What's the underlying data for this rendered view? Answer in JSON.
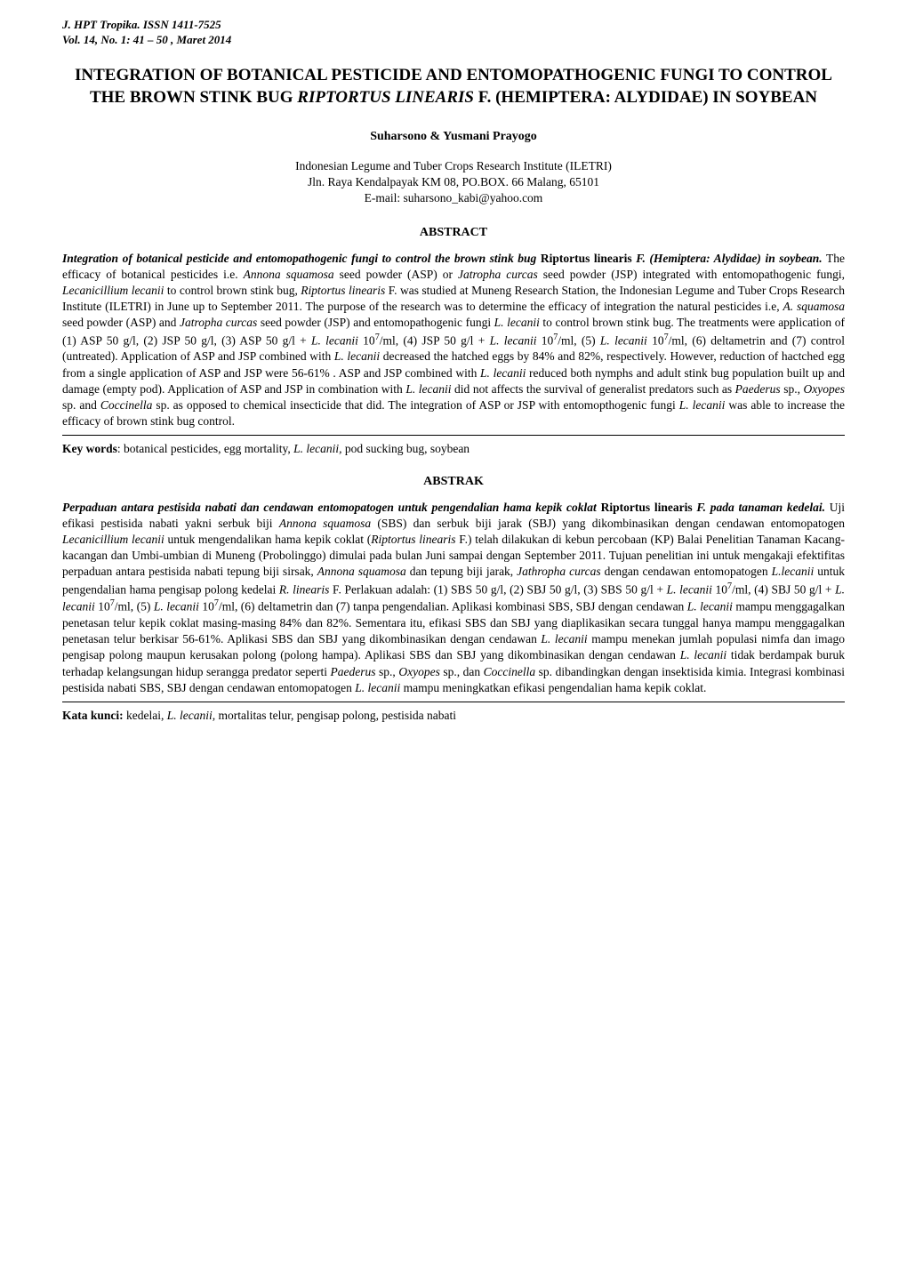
{
  "journal": {
    "name": "J. HPT Tropika.  ISSN 1411-7525",
    "vol": "Vol. 14,  No. 1: 41 – 50 ,  Maret 2014"
  },
  "title_pre": "INTEGRATION OF BOTANICAL PESTICIDE AND ENTOMOPATHOGENIC FUNGI TO CONTROL THE BROWN STINK BUG ",
  "title_sci": "RIPTORTUS LINEARIS",
  "title_post": " F. (HEMIPTERA: ALYDIDAE) IN SOYBEAN",
  "authors": "Suharsono & Yusmani Prayogo",
  "affiliation": {
    "l1": "Indonesian Legume and Tuber Crops Research Institute (ILETRI)",
    "l2": "Jln. Raya Kendalpayak KM 08, PO.BOX. 66 Malang, 65101",
    "l3": "E-mail: suharsono_kabi@yahoo.com"
  },
  "section_abstract": "ABSTRACT",
  "section_abstrak": "ABSTRAK",
  "keywords_label": "Key words",
  "keywords_pre": ": botanical  pesticides, egg mortality, ",
  "keywords_sci": "L. lecanii,",
  "keywords_post": " pod sucking bug, soybean",
  "katakunci_label": "Kata kunci:",
  "katakunci_pre": " kedelai, ",
  "katakunci_sci": "L. lecanii,",
  "katakunci_post": " mortalitas telur, pengisap polong, pestisida nabati"
}
